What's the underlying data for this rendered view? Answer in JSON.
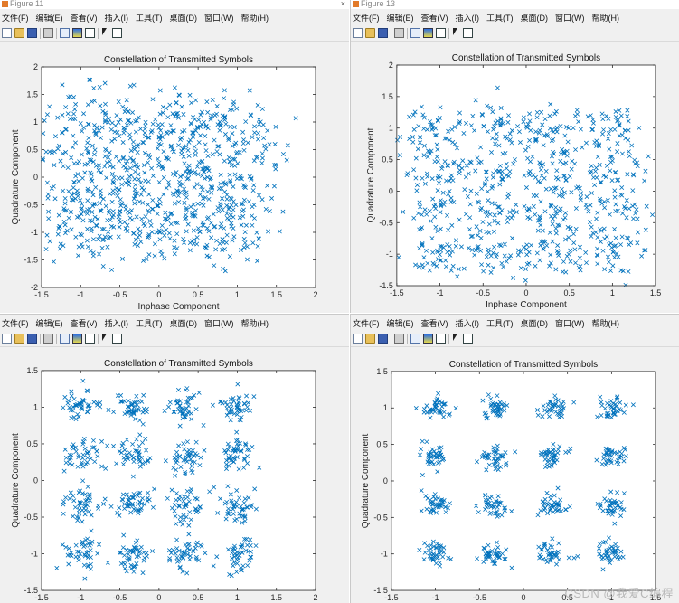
{
  "windows": [
    {
      "title": "Figure 11",
      "menu": [
        "文件(F)",
        "编辑(E)",
        "查看(V)",
        "插入(I)",
        "工具(T)",
        "桌面(D)",
        "窗口(W)",
        "帮助(H)"
      ],
      "close_glyph": "×"
    },
    {
      "title": "Figure 13",
      "menu": [
        "文件(F)",
        "编辑(E)",
        "查看(V)",
        "插入(I)",
        "工具(T)",
        "桌面(D)",
        "窗口(W)",
        "帮助(H)"
      ],
      "close_glyph": ""
    },
    {
      "title": "",
      "menu": [
        "文件(F)",
        "编辑(E)",
        "查看(V)",
        "插入(I)",
        "工具(T)",
        "桌面(D)",
        "窗口(W)",
        "帮助(H)"
      ],
      "close_glyph": ""
    },
    {
      "title": "",
      "menu": [
        "文件(F)",
        "编辑(E)",
        "查看(V)",
        "插入(I)",
        "工具(T)",
        "桌面(D)",
        "窗口(W)",
        "帮助(H)"
      ],
      "close_glyph": ""
    }
  ],
  "toolbar_icons": [
    "new-doc",
    "open-folder",
    "save",
    "print",
    "link-plot",
    "insert-colorbar",
    "insert-legend",
    "pointer",
    "data-cursor"
  ],
  "marker_color": "#0072bd",
  "watermark": "CSDN @我爱C编程",
  "chart_data": [
    {
      "type": "scatter",
      "title": "Constellation of Transmitted Symbols",
      "xlabel": "Inphase Component",
      "ylabel": "Quadrature Component",
      "xlim": [
        -1.5,
        2
      ],
      "ylim": [
        -2,
        2
      ],
      "xticks": [
        -1.5,
        -1,
        -0.5,
        0,
        0.5,
        1,
        1.5,
        2
      ],
      "yticks": [
        -2,
        -1.5,
        -1,
        -0.5,
        0,
        0.5,
        1,
        1.5,
        2
      ],
      "marker": "x",
      "grid": false,
      "constellation": "16-QAM",
      "ideal_levels": [
        -1,
        -0.33,
        0.33,
        1
      ],
      "noise_std": 0.3,
      "points_per_cluster": 55
    },
    {
      "type": "scatter",
      "title": "Constellation of Transmitted Symbols",
      "xlabel": "Inphase Component",
      "ylabel": "Quadrature Component",
      "xlim": [
        -1.5,
        1.5
      ],
      "ylim": [
        -1.5,
        2
      ],
      "xticks": [
        -1.5,
        -1,
        -0.5,
        0,
        0.5,
        1,
        1.5
      ],
      "yticks": [
        -1.5,
        -1,
        -0.5,
        0,
        0.5,
        1,
        1.5,
        2
      ],
      "marker": "x",
      "grid": false,
      "constellation": "16-QAM",
      "ideal_levels": [
        -1,
        -0.33,
        0.33,
        1
      ],
      "noise_std": 0.2,
      "points_per_cluster": 45
    },
    {
      "type": "scatter",
      "title": "Constellation of Transmitted Symbols",
      "xlabel": "",
      "ylabel": "Quadrature Component",
      "xlim": [
        -1.5,
        2
      ],
      "ylim": [
        -1.5,
        1.5
      ],
      "xticks": [
        -1.5,
        -1,
        -0.5,
        0,
        0.5,
        1,
        1.5,
        2
      ],
      "yticks": [
        -1.5,
        -1,
        -0.5,
        0,
        0.5,
        1,
        1.5
      ],
      "marker": "x",
      "grid": false,
      "constellation": "16-QAM",
      "ideal_levels": [
        -1,
        -0.33,
        0.33,
        1
      ],
      "noise_std": 0.12,
      "points_per_cluster": 45
    },
    {
      "type": "scatter",
      "title": "Constellation of Transmitted Symbols",
      "xlabel": "",
      "ylabel": "Quadrature Component",
      "xlim": [
        -1.5,
        1.5
      ],
      "ylim": [
        -1.5,
        1.5
      ],
      "xticks": [
        -1.5,
        -1,
        -0.5,
        0,
        0.5,
        1,
        1.5
      ],
      "yticks": [
        -1.5,
        -1,
        -0.5,
        0,
        0.5,
        1,
        1.5
      ],
      "marker": "x",
      "grid": false,
      "constellation": "16-QAM",
      "ideal_levels": [
        -1,
        -0.33,
        0.33,
        1
      ],
      "noise_std": 0.08,
      "points_per_cluster": 40
    }
  ]
}
